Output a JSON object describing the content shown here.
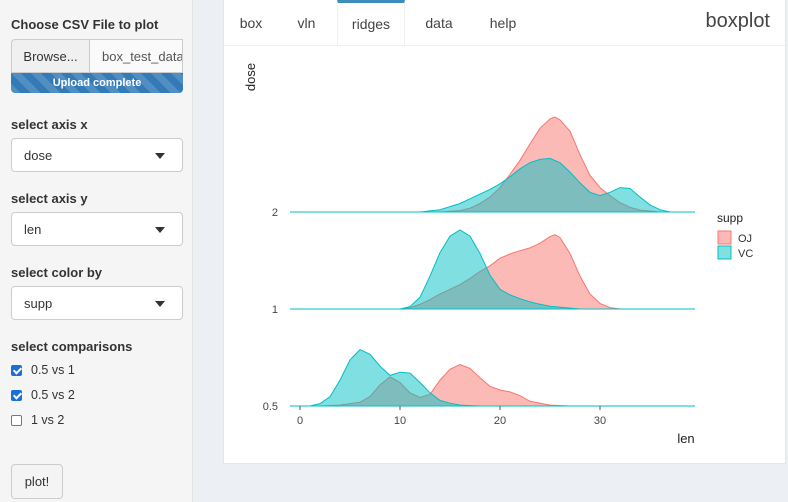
{
  "sidebar": {
    "file_label": "Choose CSV File to plot",
    "browse_label": "Browse...",
    "file_name": "box_test_data",
    "progress_label": "Upload complete",
    "axis_x_label": "select axis x",
    "axis_x_value": "dose",
    "axis_y_label": "select axis y",
    "axis_y_value": "len",
    "color_label": "select color by",
    "color_value": "supp",
    "comparisons_label": "select comparisons",
    "comparisons": [
      {
        "label": "0.5 vs 1",
        "checked": true
      },
      {
        "label": "0.5 vs 2",
        "checked": true
      },
      {
        "label": "1 vs 2",
        "checked": false
      }
    ],
    "plot_button": "plot!"
  },
  "tabs": [
    "box",
    "vln",
    "ridges",
    "data",
    "help"
  ],
  "active_tab": "ridges",
  "panel_title": "boxplot",
  "chart_data": {
    "type": "ridgeline",
    "xlabel": "len",
    "ylabel": "dose",
    "xticks": [
      0,
      10,
      20,
      30
    ],
    "xlim": [
      -1,
      39.5
    ],
    "categories": [
      "0.5",
      "1",
      "2"
    ],
    "legend": {
      "title": "supp",
      "position": "right"
    },
    "colors": {
      "OJ": "#f8766d",
      "VC": "#00bfc4"
    },
    "series": [
      {
        "name": "OJ",
        "ridges": {
          "0.5": [
            [
              -1,
              0
            ],
            [
              2,
              0
            ],
            [
              4,
              0.02
            ],
            [
              6,
              0.08
            ],
            [
              7,
              0.2
            ],
            [
              8,
              0.45
            ],
            [
              9,
              0.62
            ],
            [
              10,
              0.5
            ],
            [
              11,
              0.28
            ],
            [
              12,
              0.18
            ],
            [
              13,
              0.25
            ],
            [
              14,
              0.55
            ],
            [
              15,
              0.78
            ],
            [
              16,
              0.88
            ],
            [
              17,
              0.8
            ],
            [
              18,
              0.6
            ],
            [
              19,
              0.42
            ],
            [
              20,
              0.34
            ],
            [
              21,
              0.3
            ],
            [
              22,
              0.22
            ],
            [
              23,
              0.1
            ],
            [
              25,
              0.02
            ],
            [
              27,
              0
            ],
            [
              39.5,
              0
            ]
          ],
          "1": [
            [
              -1,
              0
            ],
            [
              10,
              0
            ],
            [
              11,
              0.03
            ],
            [
              12,
              0.1
            ],
            [
              13,
              0.2
            ],
            [
              14,
              0.32
            ],
            [
              15,
              0.42
            ],
            [
              16,
              0.52
            ],
            [
              17,
              0.65
            ],
            [
              18,
              0.8
            ],
            [
              19,
              0.92
            ],
            [
              20,
              1.08
            ],
            [
              21,
              1.17
            ],
            [
              22,
              1.24
            ],
            [
              23,
              1.3
            ],
            [
              24,
              1.4
            ],
            [
              25,
              1.54
            ],
            [
              25.5,
              1.58
            ],
            [
              26,
              1.52
            ],
            [
              27,
              1.18
            ],
            [
              28,
              0.7
            ],
            [
              29,
              0.32
            ],
            [
              30,
              0.12
            ],
            [
              31,
              0.03
            ],
            [
              32,
              0
            ],
            [
              39.5,
              0
            ]
          ],
          "2": [
            [
              -1,
              0
            ],
            [
              14,
              0
            ],
            [
              16,
              0.03
            ],
            [
              17,
              0.08
            ],
            [
              18,
              0.18
            ],
            [
              19,
              0.32
            ],
            [
              20,
              0.52
            ],
            [
              21,
              0.8
            ],
            [
              22,
              1.1
            ],
            [
              23,
              1.45
            ],
            [
              24,
              1.78
            ],
            [
              25,
              1.98
            ],
            [
              25.5,
              2.02
            ],
            [
              26,
              1.96
            ],
            [
              27,
              1.72
            ],
            [
              28,
              1.22
            ],
            [
              29,
              0.78
            ],
            [
              30,
              0.52
            ],
            [
              31,
              0.35
            ],
            [
              32,
              0.2
            ],
            [
              33,
              0.1
            ],
            [
              34,
              0.04
            ],
            [
              36,
              0
            ],
            [
              39.5,
              0
            ]
          ]
        }
      },
      {
        "name": "VC",
        "ridges": {
          "0.5": [
            [
              -1,
              0
            ],
            [
              1,
              0
            ],
            [
              2,
              0.05
            ],
            [
              3,
              0.2
            ],
            [
              4,
              0.55
            ],
            [
              5,
              0.98
            ],
            [
              6,
              1.2
            ],
            [
              7,
              1.1
            ],
            [
              8,
              0.85
            ],
            [
              9,
              0.65
            ],
            [
              10,
              0.72
            ],
            [
              11,
              0.7
            ],
            [
              12,
              0.5
            ],
            [
              13,
              0.28
            ],
            [
              14,
              0.12
            ],
            [
              15,
              0.06
            ],
            [
              16,
              0.02
            ],
            [
              18,
              0
            ],
            [
              39.5,
              0
            ]
          ],
          "1": [
            [
              -1,
              0
            ],
            [
              10,
              0
            ],
            [
              11,
              0.05
            ],
            [
              12,
              0.25
            ],
            [
              13,
              0.7
            ],
            [
              14,
              1.2
            ],
            [
              15,
              1.55
            ],
            [
              16,
              1.68
            ],
            [
              17,
              1.55
            ],
            [
              18,
              1.18
            ],
            [
              19,
              0.72
            ],
            [
              20,
              0.42
            ],
            [
              21,
              0.3
            ],
            [
              22,
              0.22
            ],
            [
              23,
              0.15
            ],
            [
              24,
              0.1
            ],
            [
              25,
              0.06
            ],
            [
              27,
              0.02
            ],
            [
              28,
              0
            ],
            [
              39.5,
              0
            ]
          ],
          "2": [
            [
              -1,
              0
            ],
            [
              12,
              0
            ],
            [
              14,
              0.05
            ],
            [
              16,
              0.18
            ],
            [
              17,
              0.28
            ],
            [
              18,
              0.38
            ],
            [
              19,
              0.48
            ],
            [
              20,
              0.6
            ],
            [
              21,
              0.75
            ],
            [
              22,
              0.92
            ],
            [
              23,
              1.05
            ],
            [
              24,
              1.12
            ],
            [
              25,
              1.14
            ],
            [
              26,
              1.05
            ],
            [
              27,
              0.85
            ],
            [
              28,
              0.62
            ],
            [
              29,
              0.42
            ],
            [
              30,
              0.35
            ],
            [
              31,
              0.42
            ],
            [
              32,
              0.52
            ],
            [
              33,
              0.5
            ],
            [
              34,
              0.32
            ],
            [
              35,
              0.15
            ],
            [
              36,
              0.05
            ],
            [
              37,
              0
            ],
            [
              39.5,
              0
            ]
          ]
        }
      }
    ]
  }
}
